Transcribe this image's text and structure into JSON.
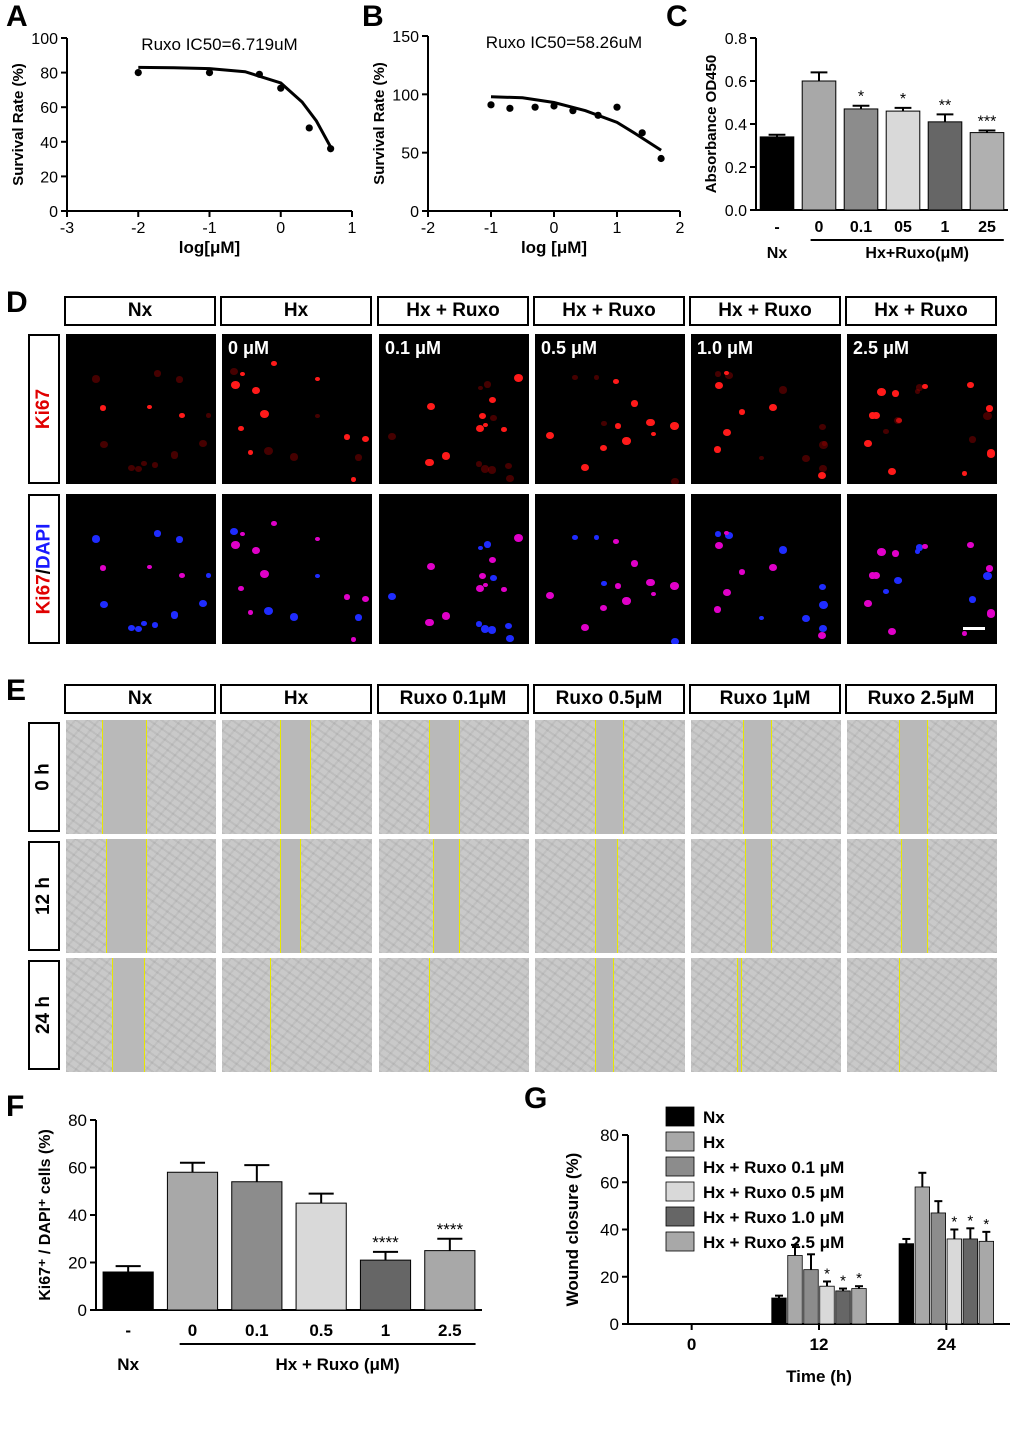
{
  "panels": {
    "A": {
      "label": "A",
      "chart_data": {
        "type": "scatter",
        "annotation": "Ruxo IC50=6.719uM",
        "xlabel": "log[μM]",
        "ylabel": "Survival Rate (%)",
        "xlim": [
          -3,
          1
        ],
        "ylim": [
          0,
          100
        ],
        "xticks": [
          "-3",
          "-2",
          "-1",
          "0",
          "1"
        ],
        "yticks": [
          "0",
          "20",
          "40",
          "60",
          "80",
          "100"
        ],
        "points": [
          [
            -2,
            80
          ],
          [
            -1,
            80
          ],
          [
            -0.3,
            79
          ],
          [
            0,
            71
          ],
          [
            0.4,
            48
          ],
          [
            0.7,
            36
          ]
        ],
        "fit": [
          [
            -2,
            83
          ],
          [
            -1.5,
            82.8
          ],
          [
            -1,
            82.3
          ],
          [
            -0.5,
            80.5
          ],
          [
            0,
            74
          ],
          [
            0.3,
            63
          ],
          [
            0.5,
            52
          ],
          [
            0.7,
            37
          ]
        ]
      }
    },
    "B": {
      "label": "B",
      "chart_data": {
        "type": "scatter",
        "annotation": "Ruxo IC50=58.26uM",
        "xlabel": "log [μM]",
        "ylabel": "Survival Rate (%)",
        "xlim": [
          -2,
          2
        ],
        "ylim": [
          0,
          150
        ],
        "xticks": [
          "-2",
          "-1",
          "0",
          "1",
          "2"
        ],
        "yticks": [
          "0",
          "50",
          "100",
          "150"
        ],
        "points": [
          [
            -1,
            91
          ],
          [
            -0.7,
            88
          ],
          [
            -0.3,
            89
          ],
          [
            0,
            90
          ],
          [
            0.3,
            86
          ],
          [
            0.7,
            82
          ],
          [
            1,
            89
          ],
          [
            1.4,
            67
          ],
          [
            1.7,
            45
          ]
        ],
        "fit": [
          [
            -1,
            98
          ],
          [
            -0.5,
            97
          ],
          [
            0,
            93
          ],
          [
            0.5,
            86
          ],
          [
            1,
            76
          ],
          [
            1.3,
            66
          ],
          [
            1.7,
            52
          ]
        ]
      }
    },
    "C": {
      "label": "C",
      "chart_data": {
        "type": "bar",
        "ylabel": "Absorbance OD450",
        "ylim": [
          0,
          0.8
        ],
        "yticks": [
          "0.0",
          "0.2",
          "0.4",
          "0.6",
          "0.8"
        ],
        "categories": [
          "-",
          "0",
          "0.1",
          "05",
          "1",
          "25"
        ],
        "values": [
          0.34,
          0.6,
          0.47,
          0.46,
          0.41,
          0.36
        ],
        "errors": [
          0.01,
          0.04,
          0.015,
          0.015,
          0.035,
          0.01
        ],
        "significance": [
          "",
          "",
          "*",
          "*",
          "**",
          "***"
        ],
        "colors": [
          "#000000",
          "#a8a8a8",
          "#8c8c8c",
          "#d9d9d9",
          "#666666",
          "#b0b0b0"
        ],
        "group_labels": {
          "nx": "Nx",
          "treated": "Hx+Ruxo(μM)"
        }
      }
    },
    "D": {
      "label": "D",
      "headers": [
        "Nx",
        "Hx",
        "Hx + Ruxo",
        "Hx + Ruxo",
        "Hx + Ruxo",
        "Hx + Ruxo"
      ],
      "doses": [
        "",
        "0 μM",
        "0.1 μM",
        "0.5 μM",
        "1.0 μM",
        "2.5 μM"
      ],
      "row_ki67": "Ki67",
      "row_merge_a": "Ki67",
      "row_merge_sep": "/",
      "row_merge_b": "DAPI"
    },
    "E": {
      "label": "E",
      "headers": [
        "Nx",
        "Hx",
        "Ruxo 0.1μM",
        "Ruxo 0.5μM",
        "Ruxo 1μM",
        "Ruxo 2.5μM"
      ],
      "rows": [
        "0 h",
        "12 h",
        "24 h"
      ]
    },
    "F": {
      "label": "F",
      "chart_data": {
        "type": "bar",
        "ylabel": "Ki67⁺ / DAPI⁺ cells (%)",
        "ylim": [
          0,
          80
        ],
        "yticks": [
          "0",
          "20",
          "40",
          "60",
          "80"
        ],
        "categories": [
          "-",
          "0",
          "0.1",
          "0.5",
          "1",
          "2.5"
        ],
        "values": [
          16,
          58,
          54,
          45,
          21,
          25
        ],
        "errors": [
          2.5,
          4,
          7,
          4,
          3.5,
          5
        ],
        "significance": [
          "",
          "",
          "",
          "",
          "****",
          "****"
        ],
        "colors": [
          "#000000",
          "#a8a8a8",
          "#8c8c8c",
          "#d9d9d9",
          "#666666",
          "#a8a8a8"
        ],
        "group_labels": {
          "nx": "Nx",
          "treated": "Hx + Ruxo (μM)"
        }
      }
    },
    "G": {
      "label": "G",
      "chart_data": {
        "type": "bar",
        "xlabel": "Time (h)",
        "ylabel": "Wound closure (%)",
        "ylim": [
          0,
          80
        ],
        "yticks": [
          "0",
          "20",
          "40",
          "60",
          "80"
        ],
        "categories": [
          "0",
          "12",
          "24"
        ],
        "series": [
          {
            "name": "Nx",
            "color": "#000000",
            "values": [
              0,
              11,
              34
            ],
            "errors": [
              0,
              1,
              2
            ],
            "sig": [
              "",
              "",
              ""
            ]
          },
          {
            "name": "Hx",
            "color": "#a8a8a8",
            "values": [
              0,
              29,
              58
            ],
            "errors": [
              0,
              4.5,
              6
            ],
            "sig": [
              "",
              "",
              ""
            ]
          },
          {
            "name": "Hx + Ruxo 0.1 μM",
            "color": "#8c8c8c",
            "values": [
              0,
              23,
              47
            ],
            "errors": [
              0,
              6.5,
              5
            ],
            "sig": [
              "",
              "",
              ""
            ]
          },
          {
            "name": "Hx + Ruxo 0.5 μM",
            "color": "#d9d9d9",
            "values": [
              0,
              16,
              36
            ],
            "errors": [
              0,
              2,
              4
            ],
            "sig": [
              "",
              "*",
              "*"
            ]
          },
          {
            "name": "Hx + Ruxo 1.0 μM",
            "color": "#666666",
            "values": [
              0,
              14,
              36
            ],
            "errors": [
              0,
              1,
              4.5
            ],
            "sig": [
              "",
              "*",
              "*"
            ]
          },
          {
            "name": "Hx + Ruxo 2.5 μM",
            "color": "#a8a8a8",
            "values": [
              0,
              15,
              35
            ],
            "errors": [
              0,
              1,
              4
            ],
            "sig": [
              "",
              "*",
              "*"
            ]
          }
        ]
      }
    }
  }
}
